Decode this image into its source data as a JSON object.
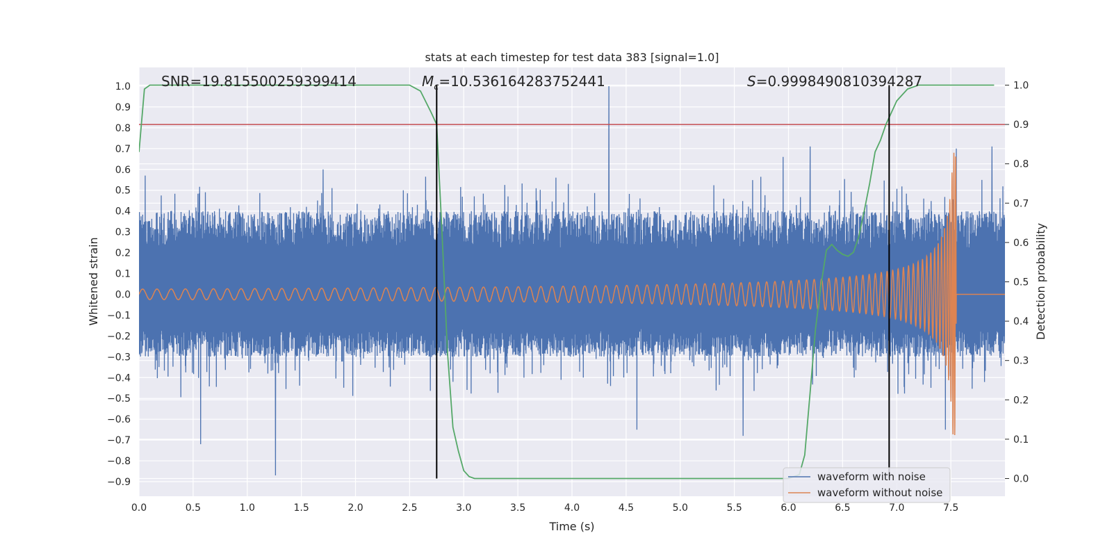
{
  "chart_data": {
    "type": "line",
    "title": "stats at each timestep for test data 383 [signal=1.0]",
    "xlabel": "Time (s)",
    "ylabel": "Whitened strain",
    "y2label": "Detection probability",
    "xlim": [
      0.0,
      8.0
    ],
    "ylim": [
      -0.97,
      1.09
    ],
    "y2lim": [
      -0.045,
      1.045
    ],
    "xticks": [
      0.0,
      0.5,
      1.0,
      1.5,
      2.0,
      2.5,
      3.0,
      3.5,
      4.0,
      4.5,
      5.0,
      5.5,
      6.0,
      6.5,
      7.0,
      7.5
    ],
    "xtick_labels": [
      "0.0",
      "0.5",
      "1.0",
      "1.5",
      "2.0",
      "2.5",
      "3.0",
      "3.5",
      "4.0",
      "4.5",
      "5.0",
      "5.5",
      "6.0",
      "6.5",
      "7.0",
      "7.5"
    ],
    "yticks": [
      1.0,
      0.9,
      0.8,
      0.7,
      0.6,
      0.5,
      0.4,
      0.3,
      0.2,
      0.1,
      0.0,
      -0.1,
      -0.2,
      -0.3,
      -0.4,
      -0.5,
      -0.6,
      -0.7,
      -0.8,
      -0.9
    ],
    "ytick_labels": [
      "1.0",
      "0.9",
      "0.8",
      "0.7",
      "0.6",
      "0.5",
      "0.4",
      "0.3",
      "0.2",
      "0.1",
      "0.0",
      "−0.1",
      "−0.2",
      "−0.3",
      "−0.4",
      "−0.5",
      "−0.6",
      "−0.7",
      "−0.8",
      "−0.9"
    ],
    "y2ticks": [
      1.0,
      0.9,
      0.8,
      0.7,
      0.6,
      0.5,
      0.4,
      0.3,
      0.2,
      0.1,
      0.0
    ],
    "y2tick_labels": [
      "1.0",
      "0.9",
      "0.8",
      "0.7",
      "0.6",
      "0.5",
      "0.4",
      "0.3",
      "0.2",
      "0.1",
      "0.0"
    ],
    "grid": true,
    "legend_position": "bottom-right",
    "annotations": {
      "snr": "SNR=19.815500259399414",
      "mc_symbol": "M",
      "mc_subscript": "c",
      "mc_value": "=10.536164283752441",
      "s_symbol": "S",
      "s_value": "=0.9998490810394287"
    },
    "vertical_lines_x": [
      2.75,
      6.93
    ],
    "threshold_y2": 0.9,
    "series": [
      {
        "name": "waveform with noise",
        "color": "#4c72b0",
        "kind": "noise",
        "band_low": -0.3,
        "band_high": 0.4,
        "peaks": [
          [
            0.57,
            -0.72
          ],
          [
            1.26,
            -0.87
          ],
          [
            4.34,
            1.0
          ],
          [
            1.7,
            0.6
          ],
          [
            4.6,
            -0.65
          ],
          [
            5.58,
            -0.68
          ],
          [
            7.45,
            -0.65
          ],
          [
            7.55,
            0.7
          ],
          [
            7.88,
            0.71
          ],
          [
            6.2,
            0.71
          ],
          [
            5.95,
            0.66
          ]
        ]
      },
      {
        "name": "waveform without noise",
        "color": "#dd8452",
        "kind": "chirp",
        "merger_time": 7.55,
        "start_amplitude": 0.025,
        "peak_amplitude": 0.68,
        "start_frequency": 7.5
      },
      {
        "name": "detection probability",
        "color": "#55a868",
        "axis": "right",
        "x": [
          0.0,
          0.05,
          0.1,
          0.15,
          0.5,
          1.0,
          1.5,
          2.0,
          2.5,
          2.6,
          2.7,
          2.75,
          2.8,
          2.85,
          2.9,
          2.95,
          3.0,
          3.05,
          3.1,
          3.5,
          4.0,
          4.5,
          5.0,
          5.5,
          6.0,
          6.1,
          6.15,
          6.2,
          6.25,
          6.3,
          6.35,
          6.4,
          6.45,
          6.5,
          6.55,
          6.6,
          6.65,
          6.7,
          6.75,
          6.8,
          6.85,
          6.9,
          6.95,
          7.0,
          7.05,
          7.1,
          7.15,
          7.2,
          7.3,
          7.5,
          7.7,
          7.9
        ],
        "y": [
          0.83,
          0.99,
          1.0,
          1.0,
          1.0,
          1.0,
          1.0,
          1.0,
          1.0,
          0.985,
          0.93,
          0.9,
          0.62,
          0.32,
          0.13,
          0.07,
          0.02,
          0.005,
          0.0,
          0.0,
          0.0,
          0.0,
          0.0,
          0.0,
          0.0,
          0.01,
          0.06,
          0.22,
          0.38,
          0.49,
          0.58,
          0.595,
          0.58,
          0.57,
          0.565,
          0.575,
          0.615,
          0.68,
          0.75,
          0.83,
          0.86,
          0.9,
          0.93,
          0.96,
          0.975,
          0.99,
          0.995,
          1.0,
          1.0,
          1.0,
          1.0,
          1.0
        ]
      },
      {
        "name": "threshold",
        "color": "#c44e52",
        "axis": "right"
      }
    ]
  }
}
